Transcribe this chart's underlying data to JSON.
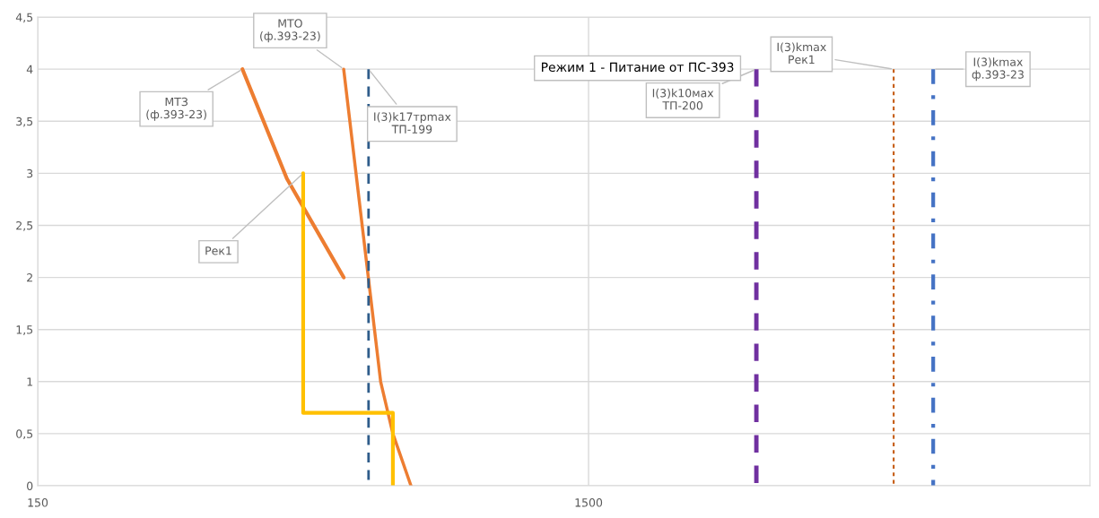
{
  "chart_data": {
    "type": "line",
    "title": "Режим 1 - Питание от ПС-393",
    "log": "x",
    "xlim": [
      150,
      12200
    ],
    "xticks": [
      150,
      1500
    ],
    "ylim": [
      0,
      4.5
    ],
    "yticks": [
      0,
      {
        "value": 0.5,
        "label": "0,5"
      },
      1,
      {
        "value": 1.5,
        "label": "1,5"
      },
      2,
      {
        "value": 2.5,
        "label": "2,5"
      },
      3,
      {
        "value": 3.5,
        "label": "3,5"
      },
      4,
      {
        "value": 4.5,
        "label": "4,5"
      }
    ],
    "grid": true,
    "marker": "none",
    "series": [
      {
        "color": "#ed7d31",
        "line_style": "solid",
        "x": [
          353,
          425,
          539
        ],
        "values": [
          4,
          2.95,
          2
        ]
      },
      {
        "color": "#ed7d31",
        "line_style": "solid",
        "x": [
          539,
          629,
          662,
          714
        ],
        "values": [
          4,
          1,
          0.5,
          0
        ]
      },
      {
        "color": "#ffc000",
        "line_style": "solid",
        "x": [
          455,
          455,
          662,
          662
        ],
        "values": [
          3,
          0.7,
          0.7,
          0
        ]
      },
      {
        "color": "#2e5c8a",
        "line_style": "dashed",
        "x": [
          598,
          598
        ],
        "values": [
          4,
          0
        ]
      },
      {
        "color": "#7030a0",
        "line_style": "dashed",
        "x": [
          3025,
          3025
        ],
        "values": [
          4,
          0
        ]
      },
      {
        "color": "#c55a11",
        "line_style": "dotted",
        "x": [
          5370,
          5370
        ],
        "values": [
          4,
          0
        ]
      },
      {
        "color": "#4472c4",
        "line_style": "dashdot",
        "x": [
          6335,
          6335
        ],
        "values": [
          4,
          0
        ]
      }
    ],
    "annotations": [
      {
        "text": "МТЗ\n(ф.393-23)",
        "x": 353,
        "y": 4
      },
      {
        "text": "МТО\n(ф.393-23)",
        "x": 539,
        "y": 4
      },
      {
        "text": "I(3)k17трmax\nТП-199",
        "x": 598,
        "y": 4
      },
      {
        "text": "Рек1",
        "x": 455,
        "y": 3
      },
      {
        "text": "I(3)k10мах\nТП-200",
        "x": 3025,
        "y": 4
      },
      {
        "text": "I(3)kmax\nРек1",
        "x": 5370,
        "y": 4
      },
      {
        "text": "I(3)kmax\nф.393-23",
        "x": 6335,
        "y": 4
      }
    ]
  }
}
